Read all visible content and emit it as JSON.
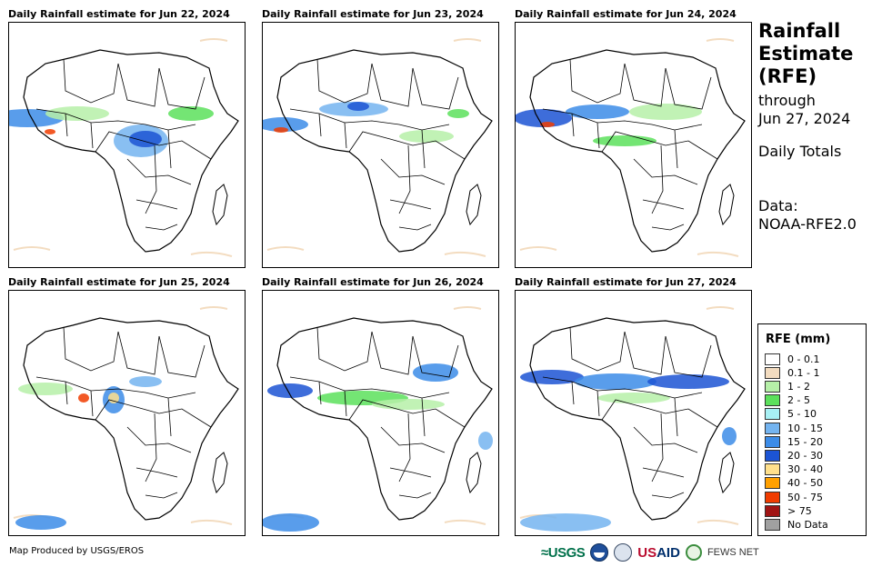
{
  "panels": [
    {
      "title": "Daily Rainfall estimate for Jun 22, 2024"
    },
    {
      "title": "Daily Rainfall estimate for Jun 23, 2024"
    },
    {
      "title": "Daily Rainfall estimate for Jun 24, 2024"
    },
    {
      "title": "Daily Rainfall estimate for Jun 25, 2024"
    },
    {
      "title": "Daily Rainfall estimate for Jun 26, 2024"
    },
    {
      "title": "Daily Rainfall estimate for Jun 27, 2024"
    }
  ],
  "header": {
    "title_line1": "Rainfall",
    "title_line2": "Estimate",
    "title_line3": "(RFE)",
    "through_label": "through",
    "through_date": "Jun 27, 2024",
    "totals_label": "Daily Totals",
    "data_label": "Data:",
    "data_source": "NOAA-RFE2.0"
  },
  "legend": {
    "title": "RFE (mm)",
    "items": [
      {
        "label": "0 - 0.1",
        "color": "#ffffff"
      },
      {
        "label": "0.1 - 1",
        "color": "#f3dcc0"
      },
      {
        "label": "1 - 2",
        "color": "#b6f0a8"
      },
      {
        "label": "2 - 5",
        "color": "#5ce05c"
      },
      {
        "label": "5 - 10",
        "color": "#a8f0f4"
      },
      {
        "label": "10 - 15",
        "color": "#74b4f0"
      },
      {
        "label": "15 - 20",
        "color": "#3c8ce8"
      },
      {
        "label": "20 - 30",
        "color": "#1c54d4"
      },
      {
        "label": "30 - 40",
        "color": "#ffe08c"
      },
      {
        "label": "40 - 50",
        "color": "#ffa000"
      },
      {
        "label": "50 - 75",
        "color": "#f03c00"
      },
      {
        "label": "> 75",
        "color": "#a01414"
      },
      {
        "label": "No Data",
        "color": "#a0a0a0"
      }
    ]
  },
  "footer": {
    "credit": "Map Produced by USGS/EROS",
    "logos": {
      "usgs": "≈USGS",
      "usaid_a": "US",
      "usaid_b": "AID",
      "fews": "FEWS NET"
    }
  }
}
